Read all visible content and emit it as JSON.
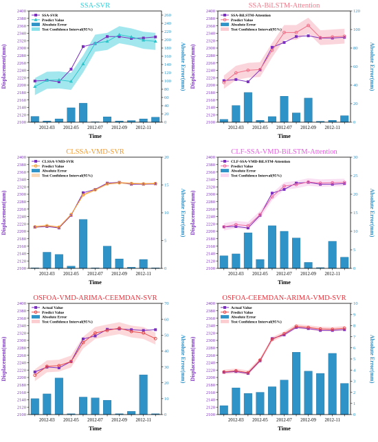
{
  "chart_data": [
    {
      "type": "bar+line",
      "title": "SSA-SVR",
      "title_color": "#2ecfd9",
      "x": [
        "2012-02",
        "2012-03",
        "2012-04",
        "2012-05",
        "2012-06",
        "2012-07",
        "2012-08",
        "2012-09",
        "2012-10",
        "2012-11",
        "2012-12"
      ],
      "x_ticks": [
        "2012-03",
        "2012-05",
        "2012-07",
        "2012-09",
        "2012-11"
      ],
      "xlabel": "Time",
      "ylabel": "Displacement(mm)",
      "ylim": [
        2100,
        2400
      ],
      "yticks": [
        2100,
        2120,
        2140,
        2160,
        2180,
        2200,
        2220,
        2240,
        2260,
        2280,
        2300,
        2320,
        2340,
        2360,
        2380,
        2400
      ],
      "y2label": "Absolute Error(mm)",
      "y2lim": [
        0,
        270
      ],
      "y2ticks": [
        0,
        20,
        40,
        60,
        80,
        100,
        120,
        140,
        160,
        180,
        200,
        220,
        240,
        260
      ],
      "band_color": "#58d4e0",
      "predict_color": "#2ec4cc",
      "legend": [
        "SSA-SVR",
        "Predict Value",
        "Absolute Error",
        "Test Confidence Interval(95%)"
      ],
      "series": [
        {
          "name": "SSA-SVR",
          "values": [
            2211,
            2213,
            2209,
            2243,
            2304,
            2312,
            2331,
            2331,
            2326,
            2327,
            2330
          ]
        },
        {
          "name": "Predict Value",
          "values": [
            2196,
            2213,
            2214,
            2210,
            2257,
            2313,
            2318,
            2336,
            2330,
            2321,
            2318
          ]
        },
        {
          "name": "Absolute Error",
          "values": [
            14,
            3,
            8,
            35,
            46,
            1,
            13,
            3,
            4,
            8,
            12
          ]
        }
      ],
      "band": {
        "lower": [
          2173,
          2190,
          2191,
          2187,
          2234,
          2290,
          2295,
          2313,
          2307,
          2298,
          2295
        ],
        "upper": [
          2219,
          2236,
          2237,
          2233,
          2280,
          2336,
          2341,
          2359,
          2353,
          2344,
          2341
        ]
      }
    },
    {
      "type": "bar+line",
      "title": "SSA-BiLSTM-Attention",
      "title_color": "#f07a8a",
      "x": [
        "2012-02",
        "2012-03",
        "2012-04",
        "2012-05",
        "2012-06",
        "2012-07",
        "2012-08",
        "2012-09",
        "2012-10",
        "2012-11",
        "2012-12"
      ],
      "x_ticks": [
        "2012-03",
        "2012-05",
        "2012-07",
        "2012-09",
        "2012-11"
      ],
      "xlabel": "Time",
      "ylabel": "Displacement(mm)",
      "ylim": [
        2100,
        2400
      ],
      "yticks": [
        2100,
        2120,
        2140,
        2160,
        2180,
        2200,
        2220,
        2240,
        2260,
        2280,
        2300,
        2320,
        2340,
        2360,
        2380,
        2400
      ],
      "y2label": "Absolute Error(mm)",
      "y2lim": [
        0,
        120
      ],
      "y2ticks": [
        0,
        20,
        40,
        60,
        80,
        100,
        120
      ],
      "band_color": "#f8b3bf",
      "predict_color": "#f06e86",
      "legend": [
        "SSA-BiLSTM-Attention",
        "Predict Value",
        "Absolute Error",
        "Test Confidence Interval(95%)"
      ],
      "series": [
        {
          "name": "SSA-BiLSTM-Attention",
          "values": [
            2212,
            2215,
            2209,
            2241,
            2302,
            2315,
            2331,
            2333,
            2327,
            2327,
            2329
          ]
        },
        {
          "name": "Predict Value",
          "values": [
            2207,
            2233,
            2240,
            2242,
            2294,
            2342,
            2342,
            2361,
            2328,
            2330,
            2332
          ]
        },
        {
          "name": "Absolute Error",
          "values": [
            3,
            18,
            32,
            2,
            6,
            28,
            10,
            26,
            1,
            2,
            7
          ]
        }
      ],
      "band": {
        "lower": [
          2190,
          2214,
          2220,
          2222,
          2275,
          2322,
          2322,
          2340,
          2308,
          2310,
          2312
        ],
        "upper": [
          2226,
          2252,
          2260,
          2262,
          2314,
          2362,
          2362,
          2382,
          2348,
          2350,
          2352
        ]
      }
    },
    {
      "type": "bar+line",
      "title": "CLSSA-VMD-SVR",
      "title_color": "#f39a2a",
      "x": [
        "2012-02",
        "2012-03",
        "2012-04",
        "2012-05",
        "2012-06",
        "2012-07",
        "2012-08",
        "2012-09",
        "2012-10",
        "2012-11",
        "2012-12"
      ],
      "x_ticks": [
        "2012-03",
        "2012-05",
        "2012-07",
        "2012-09",
        "2012-11"
      ],
      "xlabel": "Time",
      "ylabel": "Displacement(mm)",
      "ylim": [
        2100,
        2400
      ],
      "yticks": [
        2100,
        2120,
        2140,
        2160,
        2180,
        2200,
        2220,
        2240,
        2260,
        2280,
        2300,
        2320,
        2340,
        2360,
        2380,
        2400
      ],
      "y2label": "Absolute Error(mm)",
      "y2lim": [
        0,
        20
      ],
      "y2ticks": [
        0,
        5,
        10,
        15,
        20
      ],
      "band_color": "#f7c79a",
      "predict_color": "#f39a2a",
      "legend": [
        "CLSSA-VMD-SVR",
        "Predict Value",
        "Absolute Error",
        "Test Confidence Interval(95%)"
      ],
      "series": [
        {
          "name": "CLSSA-VMD-SVR",
          "values": [
            2211,
            2213,
            2209,
            2243,
            2304,
            2313,
            2330,
            2332,
            2327,
            2327,
            2328
          ]
        },
        {
          "name": "Predict Value",
          "values": [
            2212,
            2215,
            2211,
            2245,
            2298,
            2312,
            2328,
            2331,
            2329,
            2328,
            2329
          ]
        },
        {
          "name": "Absolute Error",
          "values": [
            0.1,
            2.9,
            2.5,
            0.4,
            8.8,
            0.1,
            4.0,
            1.7,
            0.2,
            1.6,
            0.1
          ]
        }
      ],
      "band": {
        "lower": [
          2209,
          2212,
          2208,
          2242,
          2295,
          2309,
          2325,
          2328,
          2326,
          2325,
          2326
        ],
        "upper": [
          2215,
          2218,
          2214,
          2248,
          2301,
          2315,
          2331,
          2334,
          2332,
          2331,
          2332
        ]
      }
    },
    {
      "type": "bar+line",
      "title": "CLF-SSA-VMD-BiLSTM-Attention",
      "title_color": "#e45ce0",
      "x": [
        "2012-02",
        "2012-03",
        "2012-04",
        "2012-05",
        "2012-06",
        "2012-07",
        "2012-08",
        "2012-09",
        "2012-10",
        "2012-11",
        "2012-12"
      ],
      "x_ticks": [
        "2012-03",
        "2012-05",
        "2012-07",
        "2012-09",
        "2012-11"
      ],
      "xlabel": "Time",
      "ylabel": "Displacement(mm)",
      "ylim": [
        2100,
        2400
      ],
      "yticks": [
        2100,
        2120,
        2140,
        2160,
        2180,
        2200,
        2220,
        2240,
        2260,
        2280,
        2300,
        2320,
        2340,
        2360,
        2380,
        2400
      ],
      "y2label": "Absolute Error(mm)",
      "y2lim": [
        0,
        30
      ],
      "y2ticks": [
        0,
        5,
        10,
        15,
        20,
        25,
        30
      ],
      "band_color": "#f6c6ea",
      "predict_color": "#ee6aa0",
      "legend": [
        "CLF-SSA-VMD-BiLSTM-Attention",
        "Predict Value",
        "Absolute Error",
        "Test Confidence Interval(95%)"
      ],
      "series": [
        {
          "name": "CLF-SSA-VMD-BiLSTM-Attention",
          "values": [
            2212,
            2213,
            2209,
            2243,
            2303,
            2313,
            2330,
            2332,
            2327,
            2327,
            2329
          ]
        },
        {
          "name": "Predict Value",
          "values": [
            2212,
            2218,
            2215,
            2245,
            2293,
            2322,
            2326,
            2333,
            2330,
            2331,
            2332
          ]
        },
        {
          "name": "Absolute Error",
          "values": [
            3.4,
            3.9,
            9.6,
            2.4,
            11.5,
            10.0,
            8.2,
            1.6,
            0.2,
            7.3,
            3.0
          ]
        }
      ],
      "band": {
        "lower": [
          2202,
          2208,
          2205,
          2235,
          2283,
          2312,
          2316,
          2323,
          2320,
          2321,
          2322
        ],
        "upper": [
          2222,
          2228,
          2225,
          2255,
          2303,
          2332,
          2336,
          2343,
          2340,
          2341,
          2342
        ]
      }
    },
    {
      "type": "bar+line",
      "title": "OSFOA-VMD-ARIMA-CEEMDAN-SVR",
      "title_color": "#e8323c",
      "x": [
        "2012-02",
        "2012-03",
        "2012-04",
        "2012-05",
        "2012-06",
        "2012-07",
        "2012-08",
        "2012-09",
        "2012-10",
        "2012-11",
        "2012-12"
      ],
      "x_ticks": [
        "2012-03",
        "2012-05",
        "2012-07",
        "2012-09",
        "2012-11"
      ],
      "xlabel": "Time",
      "ylabel": "Displacement(mm)",
      "ylim": [
        2100,
        2400
      ],
      "yticks": [
        2100,
        2120,
        2140,
        2160,
        2180,
        2200,
        2220,
        2240,
        2260,
        2280,
        2300,
        2320,
        2340,
        2360,
        2380,
        2400
      ],
      "y2label": "Absolute Error(mm)",
      "y2lim": [
        0,
        70
      ],
      "y2ticks": [
        0,
        10,
        20,
        30,
        40,
        50,
        60,
        70
      ],
      "band_color": "#f9b8bd",
      "predict_color": "#e84a4a",
      "legend": [
        "Actual Value",
        "Predict Value",
        "Absolute Error",
        "Test Confidence Interval(95%)"
      ],
      "series": [
        {
          "name": "Actual Value",
          "values": [
            2215,
            2228,
            2226,
            2243,
            2304,
            2312,
            2330,
            2331,
            2329,
            2327,
            2329
          ]
        },
        {
          "name": "Predict Value",
          "values": [
            2206,
            2230,
            2232,
            2243,
            2294,
            2320,
            2327,
            2333,
            2324,
            2320,
            2305
          ]
        },
        {
          "name": "Absolute Error",
          "values": [
            10,
            13,
            23,
            0.5,
            11,
            10.5,
            9,
            0.5,
            2,
            25,
            0.5
          ]
        }
      ],
      "band": {
        "lower": [
          2190,
          2214,
          2216,
          2227,
          2278,
          2304,
          2311,
          2317,
          2308,
          2304,
          2289
        ],
        "upper": [
          2222,
          2246,
          2248,
          2259,
          2310,
          2336,
          2343,
          2349,
          2340,
          2336,
          2321
        ]
      }
    },
    {
      "type": "bar+line",
      "title": "OSFOA-CEEMDAN-ARIMA-VMD-SVR",
      "title_color": "#e8323c",
      "x": [
        "2012-02",
        "2012-03",
        "2012-04",
        "2012-05",
        "2012-06",
        "2012-07",
        "2012-08",
        "2012-09",
        "2012-10",
        "2012-11",
        "2012-12"
      ],
      "x_ticks": [
        "2012-03",
        "2012-05",
        "2012-07",
        "2012-09",
        "2012-11"
      ],
      "xlabel": "Time",
      "ylabel": "Displacement(mm)",
      "ylim": [
        2100,
        2400
      ],
      "yticks": [
        2100,
        2120,
        2140,
        2160,
        2180,
        2200,
        2220,
        2240,
        2260,
        2280,
        2300,
        2320,
        2340,
        2360,
        2380,
        2400
      ],
      "y2label": "Absolute Error(mm)",
      "y2lim": [
        0,
        10
      ],
      "y2ticks": [
        0,
        1,
        2,
        3,
        4,
        5,
        6,
        7,
        8,
        9,
        10
      ],
      "band_color": "#f9b8bd",
      "predict_color": "#e84a4a",
      "legend": [
        "Actual Value",
        "Predict Value",
        "Absolute Error",
        "Test Confidence Interval(95%)"
      ],
      "series": [
        {
          "name": "Actual Value",
          "values": [
            2214,
            2216,
            2211,
            2245,
            2305,
            2315,
            2335,
            2332,
            2327,
            2327,
            2329
          ]
        },
        {
          "name": "Predict Value",
          "values": [
            2215,
            2218,
            2213,
            2247,
            2303,
            2318,
            2338,
            2335,
            2331,
            2330,
            2333
          ]
        },
        {
          "name": "Absolute Error",
          "values": [
            0.8,
            2.4,
            1.9,
            2.0,
            2.5,
            3.1,
            5.6,
            3.9,
            3.7,
            5.5,
            2.8
          ]
        }
      ],
      "band": {
        "lower": [
          2209,
          2212,
          2207,
          2241,
          2297,
          2312,
          2332,
          2329,
          2325,
          2324,
          2327
        ],
        "upper": [
          2221,
          2224,
          2219,
          2253,
          2309,
          2324,
          2344,
          2341,
          2337,
          2336,
          2339
        ]
      }
    }
  ]
}
